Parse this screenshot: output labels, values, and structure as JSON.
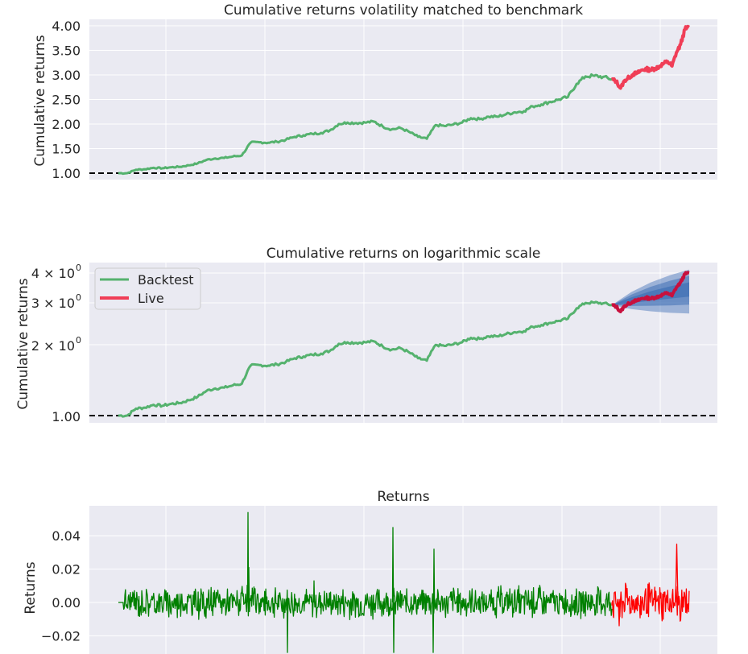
{
  "chart_data": [
    {
      "type": "line",
      "title": "Cumulative returns volatility matched to benchmark",
      "ylabel": "Cumulative returns",
      "xlabel": "",
      "ylim": [
        0.85,
        4.12
      ],
      "yscale": "linear",
      "yticks": [
        1.0,
        1.5,
        2.0,
        2.5,
        3.0,
        3.5,
        4.0
      ],
      "ytick_labels": [
        "1.00",
        "1.50",
        "2.00",
        "2.50",
        "3.00",
        "3.50",
        "4.00"
      ],
      "grid": true,
      "benchmark_line": 1.0,
      "series": [
        {
          "role": "backtest",
          "color": "#55b26e",
          "values": [
            1.0,
            1.0,
            1.07,
            1.08,
            1.11,
            1.1,
            1.12,
            1.13,
            1.16,
            1.2,
            1.27,
            1.3,
            1.31,
            1.34,
            1.36,
            1.62,
            1.63,
            1.62,
            1.64,
            1.68,
            1.74,
            1.77,
            1.8,
            1.82,
            1.87,
            2.0,
            2.03,
            2.02,
            2.03,
            2.05,
            1.95,
            1.89,
            1.92,
            1.84,
            1.74,
            1.7,
            1.98,
            1.96,
            1.99,
            2.03,
            2.12,
            2.1,
            2.15,
            2.15,
            2.2,
            2.24,
            2.26,
            2.36,
            2.4,
            2.45,
            2.5,
            2.55,
            2.82,
            2.97,
            2.98,
            2.96,
            2.91
          ]
        },
        {
          "role": "live",
          "color": "#f03e57",
          "values": [
            2.91,
            2.87,
            2.73,
            2.89,
            2.95,
            3.02,
            3.04,
            3.1,
            3.12,
            3.1,
            3.13,
            3.17,
            3.23,
            3.27,
            3.18,
            3.45,
            3.62,
            3.93,
            3.97
          ]
        }
      ]
    },
    {
      "type": "line",
      "title": "Cumulative returns on logarithmic scale",
      "ylabel": "Cumulative returns",
      "xlabel": "",
      "yscale": "log",
      "ylim": [
        0.96,
        4.25
      ],
      "ytick_labels": [
        "1.00",
        "2 × 10",
        "3 × 10",
        "4 × 10"
      ],
      "ytick_exponent": "0",
      "grid": true,
      "benchmark_line": 1.0,
      "legend": {
        "position": "top-left",
        "entries": [
          "Backtest",
          "Live"
        ]
      },
      "cone": {
        "color": "#3f6fb5",
        "upper": [
          2.91,
          3.3,
          3.62,
          3.88,
          4.1
        ],
        "lower": [
          2.91,
          2.8,
          2.74,
          2.7,
          2.68
        ]
      }
    },
    {
      "type": "line",
      "title": "Returns",
      "ylabel": "Returns",
      "xlabel": "",
      "ylim": [
        -0.03,
        0.06
      ],
      "yticks": [
        -0.02,
        0.0,
        0.02,
        0.04
      ],
      "ytick_labels": [
        "−0.02",
        "0.00",
        "0.02",
        "0.04"
      ],
      "grid": true,
      "series": [
        {
          "role": "backtest",
          "color": "#008000"
        },
        {
          "role": "live",
          "color": "#ff0000"
        }
      ],
      "spikes": [
        0.054,
        0.021,
        0.013,
        0.045,
        0.032,
        -0.03,
        -0.03,
        -0.03
      ]
    }
  ]
}
